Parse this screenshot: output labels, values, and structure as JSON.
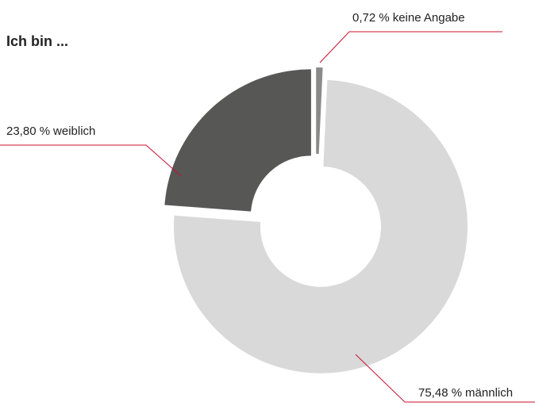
{
  "chart_data": {
    "type": "donut",
    "title": "Ich bin ...",
    "categories": [
      "keine Angabe",
      "männlich",
      "weiblich"
    ],
    "values": [
      0.72,
      75.48,
      23.8
    ],
    "value_labels": [
      "0,72 %",
      "75,48 %",
      "23,80 %"
    ],
    "colors": [
      "#8a8a89",
      "#d9d9d9",
      "#575756"
    ]
  }
}
